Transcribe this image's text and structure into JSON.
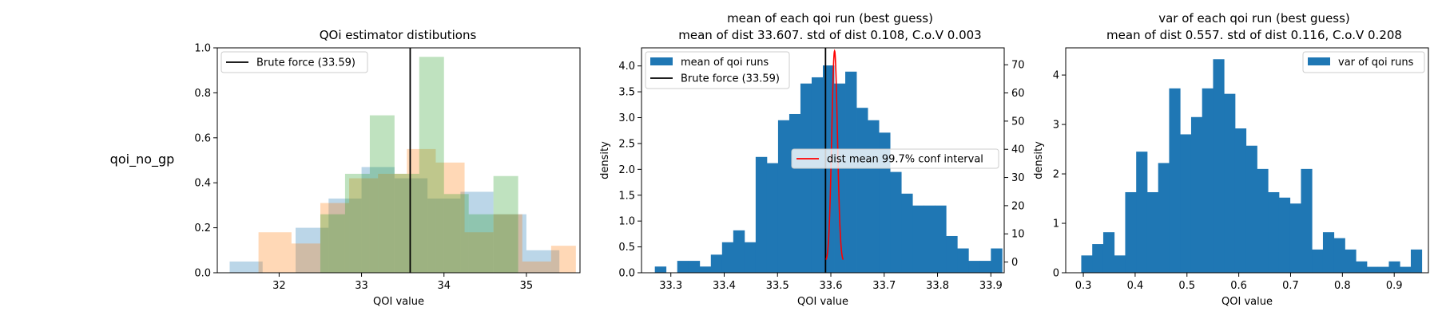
{
  "row_label": "qoi_no_gp",
  "colors": {
    "c0": "#1f77b4",
    "c1": "#ff7f0e",
    "c2": "#2ca02c",
    "black": "#000000",
    "red": "#ff0000"
  },
  "chart_data": [
    {
      "type": "histogram",
      "title": "QOi estimator distibutions",
      "xlabel": "QOI value",
      "ylabel": "",
      "xlim": [
        31.25,
        35.65
      ],
      "ylim": [
        0,
        1.0
      ],
      "xticks": [
        32,
        33,
        34,
        35
      ],
      "yticks": [
        0.0,
        0.2,
        0.4,
        0.6,
        0.8,
        1.0
      ],
      "legend_position": "upper left",
      "series": [
        {
          "color": "#1f77b4",
          "alpha": 0.3,
          "bin_edges": [
            31.4,
            31.8,
            32.2,
            32.6,
            33.0,
            33.4,
            33.8,
            34.2,
            34.6,
            35.0,
            35.4
          ],
          "values": [
            0.05,
            0.0,
            0.2,
            0.33,
            0.47,
            0.42,
            0.33,
            0.36,
            0.26,
            0.1
          ]
        },
        {
          "color": "#ff7f0e",
          "alpha": 0.3,
          "bin_edges": [
            31.75,
            32.15,
            32.5,
            32.85,
            33.2,
            33.55,
            33.9,
            34.25,
            34.6,
            34.95,
            35.3,
            35.6
          ],
          "values": [
            0.18,
            0.13,
            0.31,
            0.42,
            0.44,
            0.55,
            0.49,
            0.18,
            0.26,
            0.05,
            0.12
          ]
        },
        {
          "color": "#2ca02c",
          "alpha": 0.3,
          "bin_edges": [
            32.5,
            32.8,
            33.1,
            33.4,
            33.7,
            34.0,
            34.3,
            34.6,
            34.9
          ],
          "values": [
            0.26,
            0.44,
            0.7,
            0.44,
            0.96,
            0.35,
            0.26,
            0.43
          ]
        }
      ],
      "vlines": [
        {
          "label": "Brute force (33.59)",
          "x": 33.59,
          "color": "#000000"
        }
      ]
    },
    {
      "type": "histogram",
      "title_lines": [
        "mean of each qoi run (best guess)",
        "mean of dist 33.607. std of dist 0.108, C.o.V 0.003"
      ],
      "xlabel": "QOI value",
      "ylabel": "density",
      "xlim": [
        33.245,
        33.925
      ],
      "ylim": [
        0,
        4.35
      ],
      "xticks": [
        33.3,
        33.4,
        33.5,
        33.6,
        33.7,
        33.8,
        33.9
      ],
      "yticks": [
        0.0,
        0.5,
        1.0,
        1.5,
        2.0,
        2.5,
        3.0,
        3.5,
        4.0
      ],
      "y2lim": [
        -3.8,
        76
      ],
      "y2ticks": [
        0,
        10,
        20,
        30,
        40,
        50,
        60,
        70
      ],
      "bins_start": 33.27,
      "bin_width": 0.021,
      "values": [
        0.12,
        0.0,
        0.23,
        0.23,
        0.12,
        0.35,
        0.59,
        0.82,
        0.59,
        2.24,
        2.12,
        2.95,
        3.07,
        3.66,
        3.78,
        4.01,
        3.66,
        3.89,
        3.19,
        2.95,
        2.71,
        1.95,
        1.53,
        1.3,
        1.3,
        1.3,
        0.71,
        0.47,
        0.23,
        0.23,
        0.47
      ],
      "series_names": {
        "bars": "mean of qoi runs",
        "brute": "Brute force (33.59)",
        "ci": "dist mean 99.7% conf interval"
      },
      "brute_force_x": 33.59,
      "ci_curve": {
        "mean": 33.607,
        "sd": 0.00533,
        "peak": 74.9,
        "x_from": 33.591,
        "x_to": 33.623
      }
    },
    {
      "type": "histogram",
      "title_lines": [
        "var of each qoi run (best guess)",
        "mean of dist 0.557. std of dist 0.116, C.o.V 0.208"
      ],
      "xlabel": "QOI value",
      "ylabel": "density",
      "xlim": [
        0.266,
        0.966
      ],
      "ylim": [
        0,
        4.55
      ],
      "xticks": [
        0.3,
        0.4,
        0.5,
        0.6,
        0.7,
        0.8,
        0.9
      ],
      "yticks": [
        0,
        1,
        2,
        3,
        4
      ],
      "bins_start": 0.296,
      "bin_width": 0.0212,
      "values": [
        0.35,
        0.58,
        0.82,
        0.35,
        1.63,
        2.45,
        1.63,
        2.22,
        3.73,
        2.8,
        3.15,
        3.73,
        4.32,
        3.62,
        2.92,
        2.57,
        2.1,
        1.63,
        1.52,
        1.4,
        2.1,
        0.47,
        0.82,
        0.7,
        0.47,
        0.23,
        0.12,
        0.12,
        0.23,
        0.12,
        0.47
      ],
      "legend_label": "var of qoi runs"
    }
  ]
}
